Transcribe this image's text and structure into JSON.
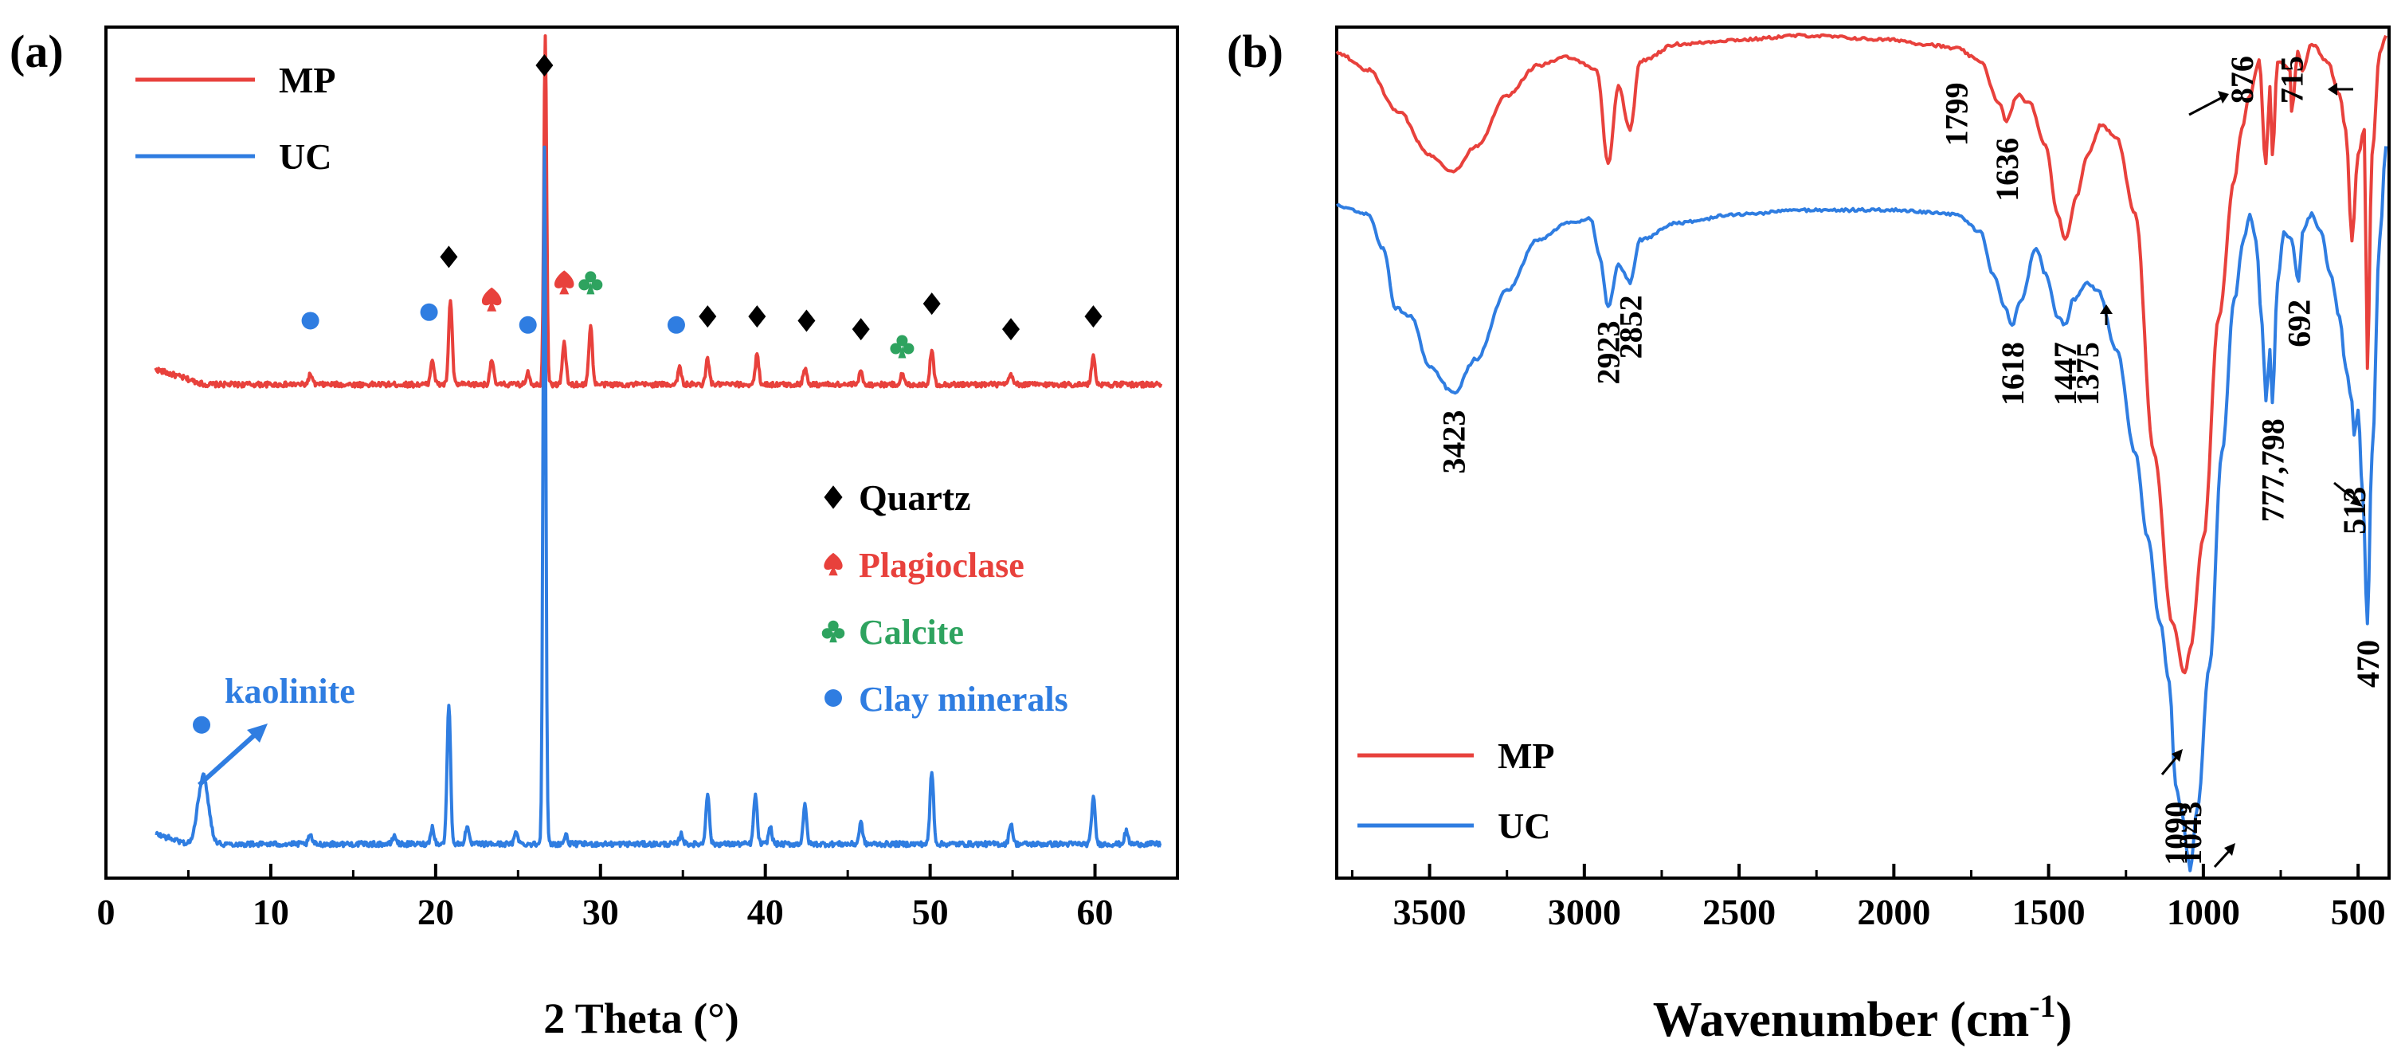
{
  "colors": {
    "mp": "#e8413c",
    "uc": "#2f7de1",
    "quartz": "#000000",
    "plagioclase": "#e8413c",
    "calcite": "#2ea35f",
    "clay": "#2f7de1"
  },
  "chart_data": [
    {
      "id": "a",
      "type": "line",
      "panel_label": "(a)",
      "xlabel": "2 Theta (°)",
      "ylabel": "",
      "xlim": [
        0,
        65
      ],
      "ylim": [
        0,
        100
      ],
      "x_ticks": [
        0,
        10,
        20,
        30,
        40,
        50,
        60
      ],
      "y_ticks_shown": false,
      "grid": false,
      "legend_position": "top-left",
      "legend": [
        {
          "name": "MP",
          "color": "#e8413c"
        },
        {
          "name": "UC",
          "color": "#2f7de1"
        }
      ],
      "series": [
        {
          "name": "MP",
          "color": "#e8413c",
          "baseline": 58,
          "peaks": [
            {
              "x": 12.4,
              "h": 1.2
            },
            {
              "x": 19.8,
              "h": 3
            },
            {
              "x": 20.9,
              "h": 10
            },
            {
              "x": 23.4,
              "h": 3
            },
            {
              "x": 25.6,
              "h": 1.5
            },
            {
              "x": 26.65,
              "h": 41
            },
            {
              "x": 27.8,
              "h": 5
            },
            {
              "x": 29.4,
              "h": 7
            },
            {
              "x": 34.8,
              "h": 2
            },
            {
              "x": 36.5,
              "h": 3
            },
            {
              "x": 39.5,
              "h": 3.5
            },
            {
              "x": 42.4,
              "h": 2
            },
            {
              "x": 45.8,
              "h": 1.5
            },
            {
              "x": 48.3,
              "h": 1.2
            },
            {
              "x": 50.1,
              "h": 4
            },
            {
              "x": 54.9,
              "h": 1.2
            },
            {
              "x": 59.9,
              "h": 3.5
            }
          ],
          "x_range": [
            3,
            64
          ]
        },
        {
          "name": "UC",
          "color": "#2f7de1",
          "baseline": 4,
          "peaks": [
            {
              "x": 5.9,
              "h": 8
            },
            {
              "x": 12.4,
              "h": 1
            },
            {
              "x": 17.5,
              "h": 1
            },
            {
              "x": 19.8,
              "h": 2
            },
            {
              "x": 20.8,
              "h": 16.5
            },
            {
              "x": 21.9,
              "h": 2
            },
            {
              "x": 24.9,
              "h": 1.5
            },
            {
              "x": 26.6,
              "h": 82
            },
            {
              "x": 27.9,
              "h": 1
            },
            {
              "x": 34.9,
              "h": 1.2
            },
            {
              "x": 36.5,
              "h": 6
            },
            {
              "x": 39.4,
              "h": 5.8
            },
            {
              "x": 40.3,
              "h": 2
            },
            {
              "x": 42.4,
              "h": 4.5
            },
            {
              "x": 45.8,
              "h": 2.5
            },
            {
              "x": 50.1,
              "h": 8.5
            },
            {
              "x": 54.9,
              "h": 2.5
            },
            {
              "x": 59.9,
              "h": 5.5
            },
            {
              "x": 61.9,
              "h": 1.5
            }
          ],
          "x_range": [
            3,
            64
          ]
        }
      ],
      "markers": [
        {
          "type": "quartz",
          "x": 26.6,
          "y": 95.5
        },
        {
          "type": "quartz",
          "x": 20.8,
          "y": 73
        },
        {
          "type": "quartz",
          "x": 36.5,
          "y": 66
        },
        {
          "type": "quartz",
          "x": 39.5,
          "y": 66
        },
        {
          "type": "quartz",
          "x": 42.5,
          "y": 65.5
        },
        {
          "type": "quartz",
          "x": 45.8,
          "y": 64.5
        },
        {
          "type": "quartz",
          "x": 50.1,
          "y": 67.5
        },
        {
          "type": "quartz",
          "x": 54.9,
          "y": 64.5
        },
        {
          "type": "quartz",
          "x": 59.9,
          "y": 66
        },
        {
          "type": "plagioclase",
          "x": 23.4,
          "y": 68
        },
        {
          "type": "plagioclase",
          "x": 27.8,
          "y": 70
        },
        {
          "type": "calcite",
          "x": 29.4,
          "y": 70
        },
        {
          "type": "calcite",
          "x": 48.3,
          "y": 62.5
        },
        {
          "type": "clay",
          "x": 12.4,
          "y": 65.5
        },
        {
          "type": "clay",
          "x": 19.6,
          "y": 66.5
        },
        {
          "type": "clay",
          "x": 25.6,
          "y": 65
        },
        {
          "type": "clay",
          "x": 34.6,
          "y": 65
        },
        {
          "type": "clay",
          "x": 5.8,
          "y": 18
        }
      ],
      "symbol_legend": [
        {
          "type": "quartz",
          "label": "Quartz",
          "color": "#000000"
        },
        {
          "type": "plagioclase",
          "label": "Plagioclase",
          "color": "#e8413c"
        },
        {
          "type": "calcite",
          "label": "Calcite",
          "color": "#2ea35f"
        },
        {
          "type": "clay",
          "label": "Clay minerals",
          "color": "#2f7de1"
        }
      ],
      "annotations": [
        {
          "text": "kaolinite",
          "color": "#2f7de1",
          "x": 7.5,
          "y": 24
        }
      ]
    },
    {
      "id": "b",
      "type": "line",
      "panel_label": "(b)",
      "xlabel": "Wavenumber (cm",
      "xlabel_sup": "-1",
      "xlabel_tail": ")",
      "ylabel": "",
      "xlim": [
        3800,
        400
      ],
      "ylim": [
        0,
        100
      ],
      "x_ticks": [
        3500,
        3000,
        2500,
        2000,
        1500,
        1000,
        500
      ],
      "y_ticks_shown": false,
      "grid": false,
      "legend_position": "bottom-left",
      "legend": [
        {
          "name": "MP",
          "color": "#e8413c"
        },
        {
          "name": "UC",
          "color": "#2f7de1"
        }
      ],
      "series": [
        {
          "name": "MP",
          "color": "#e8413c",
          "points": [
            [
              3800,
              97
            ],
            [
              3700,
              95
            ],
            [
              3600,
              90
            ],
            [
              3500,
              85
            ],
            [
              3423,
              83
            ],
            [
              3350,
              86
            ],
            [
              3250,
              92
            ],
            [
              3150,
              95.5
            ],
            [
              3050,
              96.5
            ],
            [
              2960,
              95
            ],
            [
              2923,
              84
            ],
            [
              2890,
              93
            ],
            [
              2852,
              88
            ],
            [
              2820,
              96
            ],
            [
              2700,
              98
            ],
            [
              2500,
              98.5
            ],
            [
              2300,
              99
            ],
            [
              2000,
              98.5
            ],
            [
              1900,
              98
            ],
            [
              1799,
              97.5
            ],
            [
              1720,
              96
            ],
            [
              1660,
              91
            ],
            [
              1636,
              89
            ],
            [
              1600,
              92
            ],
            [
              1560,
              91
            ],
            [
              1510,
              86
            ],
            [
              1470,
              78
            ],
            [
              1447,
              75
            ],
            [
              1410,
              80
            ],
            [
              1375,
              85
            ],
            [
              1330,
              88.5
            ],
            [
              1280,
              87
            ],
            [
              1220,
              78
            ],
            [
              1160,
              50
            ],
            [
              1100,
              30
            ],
            [
              1060,
              24
            ],
            [
              1043,
              27
            ],
            [
              1000,
              40
            ],
            [
              950,
              66
            ],
            [
              900,
              82
            ],
            [
              876,
              88
            ],
            [
              850,
              92
            ],
            [
              820,
              96
            ],
            [
              798,
              84
            ],
            [
              785,
              93
            ],
            [
              777,
              85
            ],
            [
              760,
              96
            ],
            [
              720,
              95
            ],
            [
              715,
              90
            ],
            [
              695,
              97
            ],
            [
              680,
              95
            ],
            [
              650,
              98
            ],
            [
              600,
              96
            ],
            [
              560,
              92
            ],
            [
              540,
              88
            ],
            [
              520,
              75
            ],
            [
              500,
              85
            ],
            [
              480,
              88
            ],
            [
              470,
              60
            ],
            [
              455,
              85
            ],
            [
              430,
              97
            ],
            [
              410,
              99
            ]
          ]
        },
        {
          "name": "UC",
          "color": "#2f7de1",
          "points": [
            [
              3800,
              79
            ],
            [
              3700,
              78
            ],
            [
              3650,
              74
            ],
            [
              3610,
              67
            ],
            [
              3560,
              66
            ],
            [
              3500,
              60
            ],
            [
              3423,
              57
            ],
            [
              3350,
              61
            ],
            [
              3250,
              69
            ],
            [
              3150,
              75
            ],
            [
              3050,
              77
            ],
            [
              2980,
              77.5
            ],
            [
              2950,
              73
            ],
            [
              2923,
              67
            ],
            [
              2890,
              72
            ],
            [
              2852,
              70
            ],
            [
              2820,
              75
            ],
            [
              2700,
              77
            ],
            [
              2500,
              78
            ],
            [
              2300,
              78.5
            ],
            [
              2000,
              78.5
            ],
            [
              1800,
              78
            ],
            [
              1720,
              76
            ],
            [
              1680,
              71
            ],
            [
              1640,
              67
            ],
            [
              1618,
              65
            ],
            [
              1590,
              68
            ],
            [
              1540,
              74
            ],
            [
              1510,
              71
            ],
            [
              1470,
              66
            ],
            [
              1447,
              65
            ],
            [
              1420,
              68
            ],
            [
              1375,
              70
            ],
            [
              1340,
              69
            ],
            [
              1280,
              62
            ],
            [
              1220,
              50
            ],
            [
              1180,
              40
            ],
            [
              1140,
              30
            ],
            [
              1110,
              23
            ],
            [
              1090,
              11
            ],
            [
              1070,
              8
            ],
            [
              1050,
              2.5
            ],
            [
              1043,
              1
            ],
            [
              1020,
              8
            ],
            [
              980,
              25
            ],
            [
              940,
              50
            ],
            [
              900,
              68
            ],
            [
              870,
              75
            ],
            [
              850,
              78
            ],
            [
              830,
              75
            ],
            [
              810,
              65
            ],
            [
              798,
              56
            ],
            [
              785,
              62
            ],
            [
              777,
              56
            ],
            [
              760,
              70
            ],
            [
              740,
              76
            ],
            [
              715,
              75
            ],
            [
              692,
              70
            ],
            [
              680,
              76
            ],
            [
              650,
              78
            ],
            [
              620,
              76
            ],
            [
              590,
              71
            ],
            [
              560,
              66
            ],
            [
              540,
              60
            ],
            [
              520,
              56
            ],
            [
              513,
              52
            ],
            [
              500,
              55
            ],
            [
              485,
              45
            ],
            [
              470,
              30
            ],
            [
              455,
              50
            ],
            [
              430,
              75
            ],
            [
              410,
              86
            ]
          ]
        }
      ],
      "annotations": [
        {
          "text": "3423",
          "x": 3423,
          "y": 55,
          "rotate": -90,
          "anchor": "end"
        },
        {
          "text": "2923",
          "x": 2923,
          "y": 65.5,
          "rotate": -90,
          "anchor": "end"
        },
        {
          "text": "2852",
          "x": 2852,
          "y": 68.5,
          "rotate": -90,
          "anchor": "end"
        },
        {
          "text": "1799",
          "x": 1799,
          "y": 93.5,
          "rotate": -90,
          "anchor": "end"
        },
        {
          "text": "1636",
          "x": 1636,
          "y": 87,
          "rotate": -90,
          "anchor": "end"
        },
        {
          "text": "1618",
          "x": 1618,
          "y": 63,
          "rotate": -90,
          "anchor": "end"
        },
        {
          "text": "1447",
          "x": 1447,
          "y": 63,
          "rotate": -90,
          "anchor": "end"
        },
        {
          "text": "1375",
          "x": 1375,
          "y": 63,
          "rotate": -90,
          "anchor": "end"
        },
        {
          "text": "876",
          "x": 876,
          "y": 91,
          "rotate": -90,
          "anchor": "start"
        },
        {
          "text": "715",
          "x": 715,
          "y": 91,
          "rotate": -90,
          "anchor": "start"
        },
        {
          "text": "692",
          "x": 692,
          "y": 68,
          "rotate": -90,
          "anchor": "end"
        },
        {
          "text": "777,798",
          "x": 777,
          "y": 54,
          "rotate": -90,
          "anchor": "end"
        },
        {
          "text": "513",
          "x": 513,
          "y": 46,
          "rotate": -90,
          "anchor": "end"
        },
        {
          "text": "470",
          "x": 470,
          "y": 28,
          "rotate": -90,
          "anchor": "end"
        },
        {
          "text": "1090",
          "x": 1090,
          "y": 9,
          "rotate": -90,
          "anchor": "end"
        },
        {
          "text": "1043",
          "x": 1043,
          "y": 9,
          "rotate": -90,
          "anchor": "end"
        }
      ]
    }
  ]
}
